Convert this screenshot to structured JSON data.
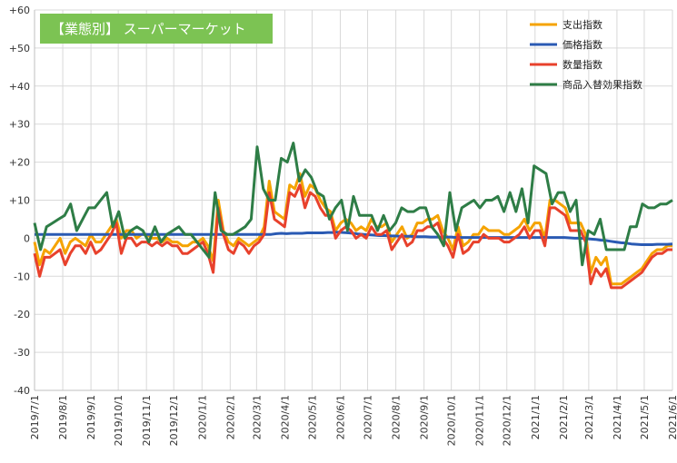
{
  "chart_data": {
    "type": "line",
    "title": "【業態別】 スーパーマーケット",
    "title_bg_color": "#7cc353",
    "xlabel": "",
    "ylabel": "",
    "ylim": [
      -40,
      60
    ],
    "yticks": [
      -40,
      -30,
      -20,
      -10,
      0,
      10,
      20,
      30,
      40,
      50,
      60
    ],
    "ytick_labels": [
      "-40",
      "-30",
      "-20",
      "-10",
      "0",
      "+10",
      "+20",
      "+30",
      "+40",
      "+50",
      "+60"
    ],
    "grid": true,
    "legend_position": "top-right",
    "x_start": "2019-07-01",
    "x_end": "2021-06-01",
    "xtick_labels": [
      "2019/7/1",
      "2019/8/1",
      "2019/9/1",
      "2019/10/1",
      "2019/11/1",
      "2019/12/1",
      "2020/1/1",
      "2020/2/1",
      "2020/3/1",
      "2020/4/1",
      "2020/5/1",
      "2020/6/1",
      "2020/7/1",
      "2020/8/1",
      "2020/9/1",
      "2020/10/1",
      "2020/11/1",
      "2020/12/1",
      "2021/1/1",
      "2021/2/1",
      "2021/3/1",
      "2021/4/1",
      "2021/5/1",
      "2021/6/1"
    ],
    "series": [
      {
        "name": "支出指数",
        "color": "#f5a300",
        "values": [
          -1,
          -7,
          -3,
          -4,
          -2,
          0,
          -4,
          -1,
          0,
          -1,
          -2,
          1,
          -1,
          -1,
          1,
          3,
          5,
          0,
          2,
          2,
          0,
          1,
          1,
          0,
          0,
          -1,
          0,
          -1,
          -1,
          -2,
          -2,
          -1,
          -1,
          0,
          -2,
          -6,
          10,
          2,
          -1,
          -2,
          0,
          -1,
          -2,
          -1,
          0,
          3,
          15,
          7,
          6,
          5,
          14,
          13,
          17,
          11,
          14,
          13,
          10,
          8,
          7,
          2,
          4,
          5,
          4,
          2,
          3,
          2,
          5,
          3,
          3,
          4,
          -1,
          1,
          3,
          0,
          1,
          4,
          4,
          5,
          5,
          6,
          2,
          0,
          -3,
          3,
          -2,
          -1,
          1,
          1,
          3,
          2,
          2,
          2,
          1,
          1,
          2,
          3,
          5,
          2,
          4,
          4,
          0,
          10,
          10,
          9,
          8,
          4,
          4,
          4,
          1,
          -9,
          -5,
          -7,
          -5,
          -12,
          -12,
          -12,
          -11,
          -10,
          -9,
          -8,
          -6,
          -4,
          -3,
          -3,
          -2,
          -2
        ]
      },
      {
        "name": "価格指数",
        "color": "#2a5ab3",
        "values": [
          1,
          1,
          1,
          1,
          1,
          1,
          1,
          1,
          1,
          1,
          1,
          1,
          1,
          1,
          1,
          1,
          1,
          1,
          1,
          1,
          1,
          1,
          1,
          1,
          1,
          1,
          1,
          1,
          1,
          1,
          1,
          1,
          1,
          1,
          1,
          1,
          1,
          1,
          1,
          1,
          1,
          1,
          1,
          1,
          1,
          1,
          1,
          1.2,
          1.3,
          1.2,
          1.3,
          1.3,
          1.3,
          1.4,
          1.4,
          1.4,
          1.4,
          1.5,
          1.5,
          1.6,
          1.5,
          1.4,
          1.3,
          1.1,
          1,
          0.9,
          0.8,
          0.7,
          0.7,
          0.6,
          0.6,
          0.5,
          0.5,
          0.5,
          0.4,
          0.4,
          0.4,
          0.3,
          0.3,
          0.3,
          0.3,
          0.3,
          0.2,
          0.2,
          0.2,
          0.2,
          0.2,
          0.2,
          0.2,
          0.2,
          0.2,
          0.2,
          0.2,
          0.2,
          0.2,
          0.2,
          0.2,
          0.2,
          0.2,
          0.2,
          0.2,
          0.2,
          0.2,
          0.2,
          0.1,
          0,
          0,
          -0.1,
          -0.2,
          -0.3,
          -0.5,
          -0.6,
          -0.8,
          -1,
          -1.2,
          -1.3,
          -1.5,
          -1.6,
          -1.7,
          -1.7,
          -1.7,
          -1.6,
          -1.6,
          -1.6,
          -1.5
        ]
      },
      {
        "name": "数量指数",
        "color": "#e8412c",
        "values": [
          -4,
          -10,
          -5,
          -5,
          -4,
          -3,
          -7,
          -4,
          -2,
          -2,
          -4,
          -1,
          -4,
          -3,
          -1,
          1,
          4,
          -4,
          0,
          0,
          -2,
          -1,
          -1,
          -2,
          -1,
          -2,
          -1,
          -2,
          -2,
          -4,
          -4,
          -3,
          -2,
          -1,
          -4,
          -9,
          8,
          1,
          -3,
          -4,
          -1,
          -2,
          -4,
          -2,
          -1,
          1,
          12,
          5,
          4,
          3,
          12,
          11,
          14,
          8,
          12,
          11,
          8,
          6,
          6,
          0,
          2,
          3,
          2,
          0,
          1,
          0,
          3,
          1,
          1,
          2,
          -3,
          -1,
          1,
          -2,
          -1,
          2,
          2,
          3,
          3,
          4,
          0,
          -2,
          -5,
          1,
          -4,
          -3,
          -1,
          -1,
          1,
          0,
          0,
          0,
          -1,
          -1,
          0,
          1,
          3,
          0,
          2,
          2,
          -2,
          8,
          8,
          7,
          6,
          2,
          2,
          2,
          -1,
          -12,
          -8,
          -10,
          -8,
          -13,
          -13,
          -13,
          -12,
          -11,
          -10,
          -9,
          -7,
          -5,
          -4,
          -4,
          -3,
          -3
        ]
      },
      {
        "name": "商品入替効果指数",
        "color": "#2e7d46",
        "values": [
          4,
          -3,
          3,
          4,
          5,
          6,
          9,
          2,
          5,
          8,
          8,
          10,
          12,
          3,
          7,
          0,
          2,
          3,
          2,
          -1,
          3,
          -1,
          1,
          2,
          3,
          1,
          1,
          -1,
          -3,
          -5,
          12,
          2,
          1,
          1,
          2,
          3,
          5,
          24,
          13,
          10,
          10,
          21,
          20,
          25,
          15,
          18,
          16,
          12,
          11,
          5,
          8,
          10,
          2,
          11,
          6,
          6,
          6,
          2,
          6,
          2,
          4,
          8,
          7,
          7,
          8,
          8,
          3,
          1,
          -2,
          12,
          2,
          8,
          9,
          10,
          8,
          10,
          10,
          11,
          7,
          12,
          7,
          13,
          4,
          19,
          18,
          17,
          9,
          12,
          12,
          7,
          10,
          -7,
          2,
          1,
          5,
          -3,
          -3,
          -3,
          -3,
          3,
          3,
          9,
          8,
          8,
          9,
          9,
          10
        ]
      }
    ]
  }
}
